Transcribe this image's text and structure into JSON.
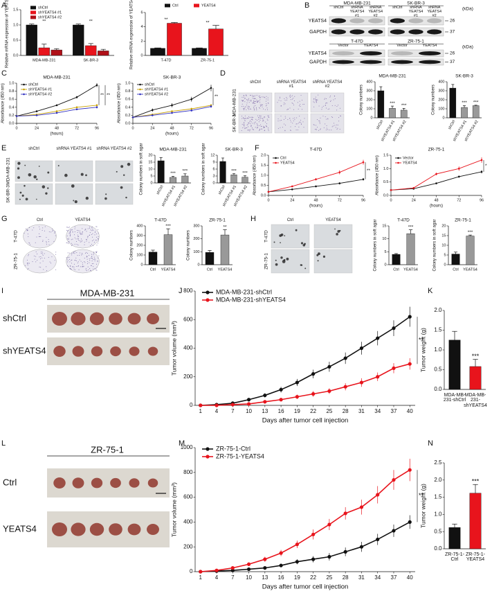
{
  "panel_letters": [
    "A",
    "B",
    "C",
    "D",
    "E",
    "F",
    "G",
    "H",
    "I",
    "J",
    "K",
    "L",
    "M",
    "N"
  ],
  "blots": [
    {
      "groups": [
        "MDA-MB-231",
        "SK-BR-3"
      ],
      "lanes": [
        "shCtrl",
        "shRNA YEATS4 #1",
        "shRNA YEATS4 #2",
        "shCtrl",
        "shRNA YEATS4 #1",
        "shRNA YEATS4 #2"
      ],
      "rows": [
        "YEATS4",
        "GAPDH"
      ],
      "markers": [
        "26",
        "37"
      ],
      "unit": "(kDa)"
    },
    {
      "groups": [
        "T-47D",
        "ZR-75-1"
      ],
      "lanes": [
        "Vector",
        "YEATS4",
        "Vector",
        "YEATS4"
      ],
      "rows": [
        "YEATS4",
        "GAPDH"
      ],
      "markers": [
        "26",
        "37"
      ],
      "unit": "(kDa)"
    }
  ],
  "plates": [
    {
      "columns": [
        "shCtrl",
        "shRNA YEATS4 #1",
        "shRNA YEATS4 #2"
      ],
      "rows": [
        "MDA-MB-231",
        "SK-BR-3"
      ]
    },
    {
      "columns": [
        "shCtrl",
        "shRNA YEATS4 #1",
        "shRNA YEATS4 #2"
      ],
      "rows": [
        "MDA-MB-231",
        "SK-BR-3"
      ]
    },
    {
      "columns": [
        "Ctrl",
        "YEATS4"
      ],
      "rows": [
        "T-47D",
        "ZR-75-1"
      ]
    },
    {
      "columns": [
        "Ctrl",
        "YEATS4"
      ],
      "rows": [
        "T-47D",
        "ZR-75-1"
      ]
    }
  ],
  "tumors": [
    {
      "title": "MDA-MB-231",
      "rows": [
        "shCtrl",
        "shYEATS4"
      ]
    },
    {
      "title": "ZR-75-1",
      "rows": [
        "Ctrl",
        "YEATS4"
      ]
    }
  ],
  "chart_data": [
    {
      "type": "bar",
      "ylabel": "Relative mRNA expression of YEATS4",
      "categories": [
        "MDA-MB-231",
        "SK-BR-3"
      ],
      "series": [
        {
          "name": "shCtrl",
          "color": "#111111",
          "values": [
            1.0,
            1.0
          ],
          "errors": [
            0.03,
            0.03
          ]
        },
        {
          "name": "shYEATS4 #1",
          "color": "#e8141c",
          "values": [
            0.25,
            0.32
          ],
          "errors": [
            0.12,
            0.07
          ]
        },
        {
          "name": "shYEATS4 #2",
          "color": "#b01018",
          "values": [
            0.18,
            0.15
          ],
          "errors": [
            0.04,
            0.05
          ]
        }
      ],
      "ylim": [
        0,
        1.5
      ],
      "yticks": [
        {
          "value": 0,
          "label": "0.0"
        },
        0.5,
        {
          "value": 1,
          "label": "1.0"
        },
        1.5
      ],
      "annotations": [
        "**",
        "**"
      ]
    },
    {
      "type": "bar",
      "ylabel": "Relative mRNA expression of YEATS4",
      "categories": [
        "T-47D",
        "ZR-75-1"
      ],
      "series": [
        {
          "name": "Ctrl",
          "color": "#111111",
          "values": [
            1,
            1
          ],
          "errors": [
            0.05,
            0.05
          ]
        },
        {
          "name": "YEATS4",
          "color": "#e8141c",
          "values": [
            4.5,
            3.7
          ],
          "errors": [
            0.1,
            0.5
          ]
        }
      ],
      "ylim": [
        0,
        6
      ],
      "yticks": [
        0,
        2,
        4,
        6
      ],
      "annotations": [
        "**",
        "**"
      ]
    },
    {
      "type": "line",
      "title": "MDA-MB-231",
      "xlabel": "(hours)",
      "ylabel": "Absorbance (450 nm)",
      "x": [
        0,
        24,
        48,
        72,
        96
      ],
      "xlim": [
        0,
        96
      ],
      "xticks": [
        0,
        24,
        48,
        72,
        96
      ],
      "series": [
        {
          "name": "shCtrl",
          "color": "#111111",
          "values": [
            0.18,
            0.3,
            0.45,
            0.65,
            0.95
          ],
          "errors": [
            0.01,
            0.02,
            0.02,
            0.03,
            0.05
          ]
        },
        {
          "name": "shYEATS4 #1",
          "color": "#c8a000",
          "values": [
            0.18,
            0.22,
            0.3,
            0.4,
            0.45
          ],
          "errors": [
            0.01,
            0.01,
            0.02,
            0.02,
            0.03
          ]
        },
        {
          "name": "shYEATS4 #2",
          "color": "#3030c0",
          "values": [
            0.18,
            0.2,
            0.26,
            0.35,
            0.4
          ],
          "errors": [
            0.01,
            0.01,
            0.02,
            0.02,
            0.03
          ]
        }
      ],
      "ylim": [
        0,
        1
      ],
      "yticks": [
        {
          "value": 0,
          "label": "0.0"
        },
        0.2,
        0.4,
        0.6,
        0.8,
        {
          "value": 1,
          "label": "1.0"
        }
      ],
      "annotations": [
        "**",
        "**"
      ]
    },
    {
      "type": "line",
      "title": "SK-BR-3",
      "xlabel": "(hours)",
      "ylabel": "Absorbance (450 nm)",
      "x": [
        0,
        24,
        48,
        72,
        96
      ],
      "xlim": [
        0,
        96
      ],
      "xticks": [
        0,
        24,
        48,
        72,
        96
      ],
      "series": [
        {
          "name": "shCtrl",
          "color": "#111111",
          "values": [
            0.15,
            0.33,
            0.45,
            0.6,
            0.88
          ],
          "errors": [
            0.01,
            0.04,
            0.05,
            0.06,
            0.08
          ]
        },
        {
          "name": "shYEATS4 #1",
          "color": "#c8a000",
          "values": [
            0.15,
            0.22,
            0.3,
            0.36,
            0.45
          ],
          "errors": [
            0.01,
            0.02,
            0.02,
            0.03,
            0.03
          ]
        },
        {
          "name": "shYEATS4 #2",
          "color": "#3030c0",
          "values": [
            0.15,
            0.2,
            0.26,
            0.32,
            0.42
          ],
          "errors": [
            0.01,
            0.02,
            0.02,
            0.02,
            0.03
          ]
        }
      ],
      "ylim": [
        0,
        1
      ],
      "yticks": [
        {
          "value": 0,
          "label": "0.0"
        },
        0.2,
        0.4,
        0.6,
        0.8,
        {
          "value": 1,
          "label": "1.0"
        }
      ],
      "annotations": [
        "**"
      ]
    },
    {
      "type": "bar",
      "title": "MDA-MB-231",
      "ylabel": "Colony numbers",
      "categories": [
        "shCtrl",
        "shYEATS4 #1",
        "shYEATS4 #2"
      ],
      "values": [
        300,
        105,
        85
      ],
      "errors": [
        45,
        25,
        20
      ],
      "colors": [
        "#111111",
        "#999999",
        "#999999"
      ],
      "ylim": [
        0,
        400
      ],
      "yticks": [
        0,
        100,
        200,
        300,
        400
      ],
      "annotations": [
        null,
        "***",
        "***"
      ]
    },
    {
      "type": "bar",
      "title": "SK-BR-3",
      "ylabel": "Colony numbers",
      "categories": [
        "shCtrl",
        "shYEATS4 #1",
        "shYEATS4 #2"
      ],
      "values": [
        330,
        115,
        135
      ],
      "errors": [
        40,
        20,
        5
      ],
      "colors": [
        "#111111",
        "#999999",
        "#999999"
      ],
      "ylim": [
        0,
        400
      ],
      "yticks": [
        0,
        100,
        200,
        300,
        400
      ],
      "annotations": [
        null,
        "***",
        "***"
      ]
    },
    {
      "type": "bar",
      "title": "MDA-MB-231",
      "ylabel": "Colony numbers in soft agar",
      "categories": [
        "shCtrl",
        "shYEATS4 #1",
        "shYEATS4 #2"
      ],
      "values": [
        16,
        4,
        5
      ],
      "errors": [
        2.3,
        0.8,
        1.6
      ],
      "colors": [
        "#111111",
        "#999999",
        "#999999"
      ],
      "ylim": [
        0,
        20
      ],
      "yticks": [
        0,
        5,
        10,
        15,
        20
      ],
      "annotations": [
        null,
        "***",
        "***"
      ]
    },
    {
      "type": "bar",
      "title": "SK-BR-3",
      "ylabel": "Colony numbers in soft agar",
      "categories": [
        "shCtrl",
        "shYEATS4 #1",
        "shYEATS4 #2"
      ],
      "values": [
        9.3,
        3.5,
        2.5
      ],
      "errors": [
        1.5,
        0.5,
        0.6
      ],
      "colors": [
        "#111111",
        "#999999",
        "#999999"
      ],
      "ylim": [
        0,
        12
      ],
      "yticks": [
        0,
        3,
        6,
        9,
        12
      ],
      "annotations": [
        null,
        "***",
        "***"
      ]
    },
    {
      "type": "line",
      "title": "T-47D",
      "xlabel": "(hours)",
      "ylabel": "Absorbance (450 nm)",
      "x": [
        0,
        24,
        48,
        72,
        96
      ],
      "xlim": [
        0,
        96
      ],
      "xticks": [
        0,
        24,
        48,
        72,
        96
      ],
      "series": [
        {
          "name": "Ctrl",
          "color": "#111111",
          "values": [
            0.18,
            0.3,
            0.45,
            0.6,
            0.8
          ],
          "errors": [
            0.01,
            0.03,
            0.04,
            0.05,
            0.06
          ]
        },
        {
          "name": "YEATS4",
          "color": "#e8141c",
          "values": [
            0.18,
            0.45,
            0.8,
            1.15,
            1.65
          ],
          "errors": [
            0.01,
            0.04,
            0.06,
            0.1,
            0.12
          ]
        }
      ],
      "ylim": [
        0,
        2
      ],
      "yticks": [
        {
          "value": 0,
          "label": "0.0"
        },
        0.5,
        {
          "value": 1,
          "label": "1.0"
        },
        1.5,
        {
          "value": 2,
          "label": "2.0"
        }
      ],
      "annotations": [
        "**"
      ]
    },
    {
      "type": "line",
      "title": "ZR-75-1",
      "xlabel": "(hours)",
      "ylabel": "Absorbance (450 nm)",
      "x": [
        0,
        24,
        48,
        72,
        96
      ],
      "xlim": [
        0,
        96
      ],
      "xticks": [
        0,
        24,
        48,
        72,
        96
      ],
      "series": [
        {
          "name": "Vector",
          "color": "#111111",
          "values": [
            0.2,
            0.25,
            0.45,
            0.7,
            0.88
          ],
          "errors": [
            0.01,
            0.02,
            0.03,
            0.04,
            0.06
          ]
        },
        {
          "name": "YEATS4",
          "color": "#e8141c",
          "values": [
            0.2,
            0.28,
            0.8,
            1.0,
            1.32
          ],
          "errors": [
            0.01,
            0.03,
            0.05,
            0.08,
            0.1
          ]
        }
      ],
      "ylim": [
        0,
        1.5
      ],
      "yticks": [
        {
          "value": 0,
          "label": "0.0"
        },
        0.5,
        {
          "value": 1,
          "label": "1.0"
        },
        1.5
      ],
      "annotations": [
        "*"
      ]
    },
    {
      "type": "bar",
      "title": "T-47D",
      "ylabel": "Colony numbers",
      "categories": [
        "Ctrl",
        "YEATS4"
      ],
      "values": [
        130,
        310
      ],
      "errors": [
        20,
        60
      ],
      "colors": [
        "#111111",
        "#999999"
      ],
      "ylim": [
        0,
        400
      ],
      "yticks": [
        0,
        100,
        200,
        300,
        400
      ],
      "annotations": [
        null,
        "***"
      ]
    },
    {
      "type": "bar",
      "title": "ZR-75-1",
      "ylabel": "Colony numbers",
      "categories": [
        "Ctrl",
        "YEATS4"
      ],
      "values": [
        95,
        230
      ],
      "errors": [
        15,
        40
      ],
      "colors": [
        "#111111",
        "#999999"
      ],
      "ylim": [
        0,
        300
      ],
      "yticks": [
        0,
        100,
        200,
        300
      ],
      "annotations": [
        null,
        "**"
      ]
    },
    {
      "type": "bar",
      "title": "T-47D",
      "ylabel": "Colony numbers in soft agar",
      "categories": [
        "Ctrl",
        "YEATS4"
      ],
      "values": [
        4,
        12
      ],
      "errors": [
        0.3,
        1.5
      ],
      "colors": [
        "#111111",
        "#999999"
      ],
      "ylim": [
        0,
        15
      ],
      "yticks": [
        0,
        5,
        10,
        15
      ],
      "annotations": [
        null,
        "***"
      ]
    },
    {
      "type": "bar",
      "title": "ZR-75-1",
      "ylabel": "Colony numbers in soft agar",
      "categories": [
        "Ctrl",
        "YEATS4"
      ],
      "values": [
        5.5,
        14.8
      ],
      "errors": [
        1,
        0.5
      ],
      "colors": [
        "#111111",
        "#999999"
      ],
      "ylim": [
        0,
        20
      ],
      "yticks": [
        0,
        5,
        10,
        15,
        20
      ],
      "annotations": [
        null,
        "***"
      ]
    },
    {
      "type": "line",
      "xlabel": "Days after tumor cell injection",
      "ylabel": "Tumor volume (mm³)",
      "x": [
        1,
        4,
        7,
        10,
        13,
        16,
        19,
        22,
        25,
        28,
        31,
        34,
        37,
        40
      ],
      "xlim": [
        0,
        41
      ],
      "xticks": [
        1,
        4,
        7,
        10,
        13,
        16,
        19,
        22,
        25,
        28,
        31,
        34,
        37,
        40
      ],
      "series": [
        {
          "name": "MDA-MB-231-shCtrl",
          "color": "#111111",
          "values": [
            0,
            5,
            15,
            40,
            70,
            110,
            160,
            220,
            270,
            330,
            400,
            470,
            540,
            620
          ],
          "errors": [
            0,
            2,
            5,
            10,
            15,
            20,
            25,
            30,
            35,
            40,
            45,
            50,
            55,
            70
          ]
        },
        {
          "name": "MDA-MB-231-shYEATS4",
          "color": "#e8141c",
          "values": [
            0,
            0,
            5,
            10,
            25,
            40,
            60,
            80,
            100,
            130,
            160,
            200,
            260,
            290
          ],
          "errors": [
            0,
            0,
            3,
            5,
            8,
            10,
            15,
            20,
            20,
            25,
            30,
            30,
            35,
            40
          ]
        }
      ],
      "ylim": [
        0,
        800
      ],
      "yticks": [
        0,
        200,
        400,
        600,
        800
      ],
      "annotations": [
        "**"
      ]
    },
    {
      "type": "bar",
      "ylabel": "Tumor weight (g)",
      "categories": [
        "MDA-MB-231-shCtrl",
        "MDA-MB-231-shYEATS4"
      ],
      "values": [
        1.25,
        0.58
      ],
      "errors": [
        0.22,
        0.18
      ],
      "colors": [
        "#111111",
        "#e8141c"
      ],
      "ylim": [
        0,
        2
      ],
      "yticks": [
        {
          "value": 0,
          "label": "0.0"
        },
        0.5,
        {
          "value": 1,
          "label": "1.0"
        },
        1.5,
        {
          "value": 2,
          "label": "2.0"
        }
      ],
      "annotations": [
        null,
        "***"
      ]
    },
    {
      "type": "line",
      "xlabel": "Days after tumor cell injection",
      "ylabel": "Tumor volume (mm³)",
      "x": [
        1,
        4,
        7,
        10,
        13,
        16,
        19,
        22,
        25,
        28,
        31,
        34,
        37,
        40
      ],
      "xlim": [
        0,
        41
      ],
      "xticks": [
        1,
        4,
        7,
        10,
        13,
        16,
        19,
        22,
        25,
        28,
        31,
        34,
        37,
        40
      ],
      "series": [
        {
          "name": "ZR-75-1-Ctrl",
          "color": "#111111",
          "values": [
            0,
            5,
            10,
            20,
            30,
            50,
            80,
            100,
            120,
            160,
            200,
            260,
            330,
            400
          ],
          "errors": [
            0,
            3,
            5,
            8,
            10,
            15,
            20,
            25,
            30,
            35,
            40,
            45,
            50,
            55
          ]
        },
        {
          "name": "ZR-75-1-YEATS4",
          "color": "#e8141c",
          "values": [
            0,
            10,
            30,
            60,
            100,
            150,
            220,
            300,
            380,
            470,
            520,
            620,
            740,
            820
          ],
          "errors": [
            0,
            5,
            10,
            15,
            20,
            25,
            30,
            40,
            45,
            50,
            60,
            70,
            80,
            90
          ]
        }
      ],
      "ylim": [
        0,
        1000
      ],
      "yticks": [
        0,
        200,
        400,
        600,
        800,
        1000
      ],
      "annotations": [
        "**"
      ]
    },
    {
      "type": "bar",
      "ylabel": "Tumor weight (g)",
      "categories": [
        "ZR-75-1-Ctrl",
        "ZR-75-1-YEATS4"
      ],
      "values": [
        0.62,
        1.62
      ],
      "errors": [
        0.1,
        0.25
      ],
      "colors": [
        "#111111",
        "#e8141c"
      ],
      "ylim": [
        0,
        2.5
      ],
      "yticks": [
        {
          "value": 0,
          "label": "0.0"
        },
        0.5,
        {
          "value": 1,
          "label": "1.0"
        },
        1.5,
        {
          "value": 2,
          "label": "2.0"
        },
        2.5
      ],
      "annotations": [
        null,
        "***"
      ]
    }
  ]
}
